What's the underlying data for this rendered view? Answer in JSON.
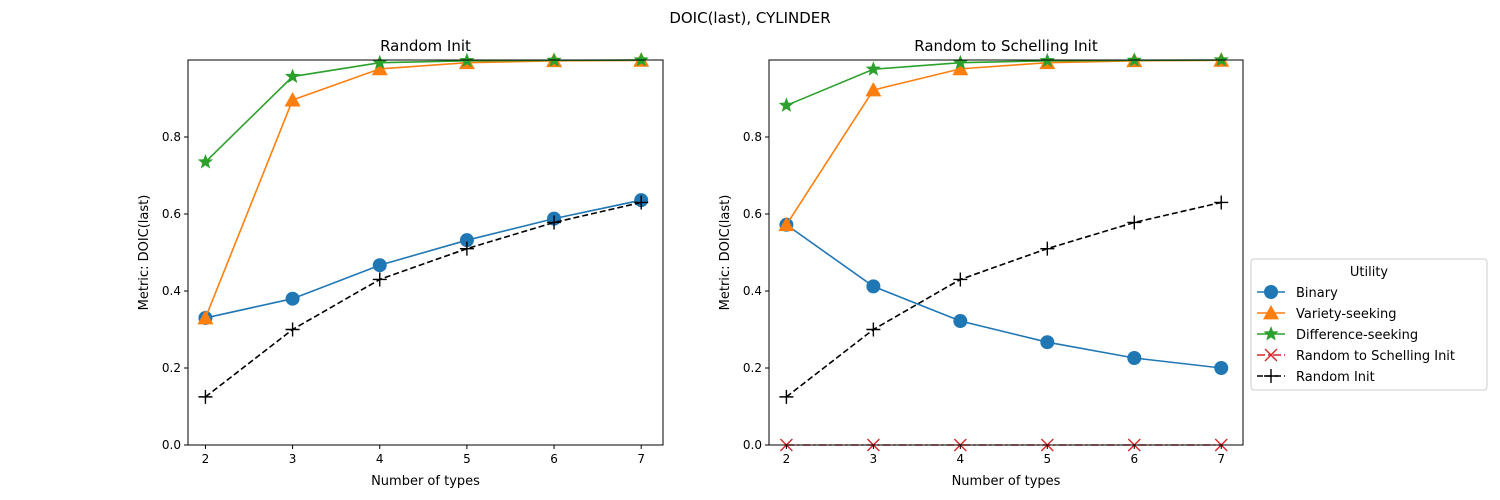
{
  "figure_title": "DOIC(last), CYLINDER",
  "legend": {
    "title": "Utility",
    "entries": [
      {
        "label": "Binary",
        "color": "#1f77b4",
        "marker": "circle",
        "line": "solid"
      },
      {
        "label": "Variety-seeking",
        "color": "#ff7f0e",
        "marker": "triangle",
        "line": "solid"
      },
      {
        "label": "Difference-seeking",
        "color": "#2ca02c",
        "marker": "star",
        "line": "solid"
      },
      {
        "label": "Random to Schelling Init",
        "color": "#d62728",
        "marker": "x",
        "line": "dashdot"
      },
      {
        "label": "Random Init",
        "color": "#000000",
        "marker": "plus",
        "line": "dashed"
      }
    ]
  },
  "chart_data": [
    {
      "type": "line",
      "title": "Random Init",
      "xlabel": "Number of types",
      "ylabel": "Metric: DOIC(last)",
      "x": [
        2,
        3,
        4,
        5,
        6,
        7
      ],
      "xlim": [
        1.8,
        7.25
      ],
      "ylim": [
        0,
        1.0
      ],
      "xticks": [
        "2",
        "3",
        "4",
        "5",
        "6",
        "7"
      ],
      "yticks": [
        "0.0",
        "0.2",
        "0.4",
        "0.6",
        "0.8"
      ],
      "grid": false,
      "series": [
        {
          "name": "Binary",
          "color": "#1f77b4",
          "marker": "circle",
          "line": "solid",
          "values": [
            0.33,
            0.38,
            0.467,
            0.532,
            0.588,
            0.636
          ]
        },
        {
          "name": "Variety-seeking",
          "color": "#ff7f0e",
          "marker": "triangle",
          "line": "solid",
          "values": [
            0.33,
            0.896,
            0.977,
            0.993,
            0.998,
            0.999
          ]
        },
        {
          "name": "Difference-seeking",
          "color": "#2ca02c",
          "marker": "star",
          "line": "solid",
          "values": [
            0.735,
            0.957,
            0.993,
            0.998,
            0.999,
            1.0
          ]
        },
        {
          "name": "Random Init",
          "color": "#000000",
          "marker": "plus",
          "line": "dashed",
          "values": [
            0.125,
            0.3,
            0.43,
            0.51,
            0.578,
            0.63
          ]
        }
      ]
    },
    {
      "type": "line",
      "title": "Random to Schelling Init",
      "xlabel": "Number of types",
      "ylabel": "Metric: DOIC(last)",
      "x": [
        2,
        3,
        4,
        5,
        6,
        7
      ],
      "xlim": [
        1.8,
        7.25
      ],
      "ylim": [
        0,
        1.0
      ],
      "xticks": [
        "2",
        "3",
        "4",
        "5",
        "6",
        "7"
      ],
      "yticks": [
        "0.0",
        "0.2",
        "0.4",
        "0.6",
        "0.8"
      ],
      "grid": false,
      "series": [
        {
          "name": "Binary",
          "color": "#1f77b4",
          "marker": "circle",
          "line": "solid",
          "values": [
            0.572,
            0.412,
            0.322,
            0.267,
            0.226,
            0.2
          ]
        },
        {
          "name": "Variety-seeking",
          "color": "#ff7f0e",
          "marker": "triangle",
          "line": "solid",
          "values": [
            0.572,
            0.922,
            0.977,
            0.993,
            0.998,
            0.999
          ]
        },
        {
          "name": "Difference-seeking",
          "color": "#2ca02c",
          "marker": "star",
          "line": "solid",
          "values": [
            0.882,
            0.976,
            0.993,
            0.998,
            0.999,
            1.0
          ]
        },
        {
          "name": "Random to Schelling Init",
          "color": "#d62728",
          "marker": "x",
          "line": "dashdot",
          "values": [
            0,
            0,
            0,
            0,
            0,
            0
          ]
        },
        {
          "name": "Random Init",
          "color": "#000000",
          "marker": "plus",
          "line": "dashed",
          "values": [
            0.125,
            0.3,
            0.43,
            0.51,
            0.578,
            0.63
          ]
        }
      ]
    }
  ]
}
